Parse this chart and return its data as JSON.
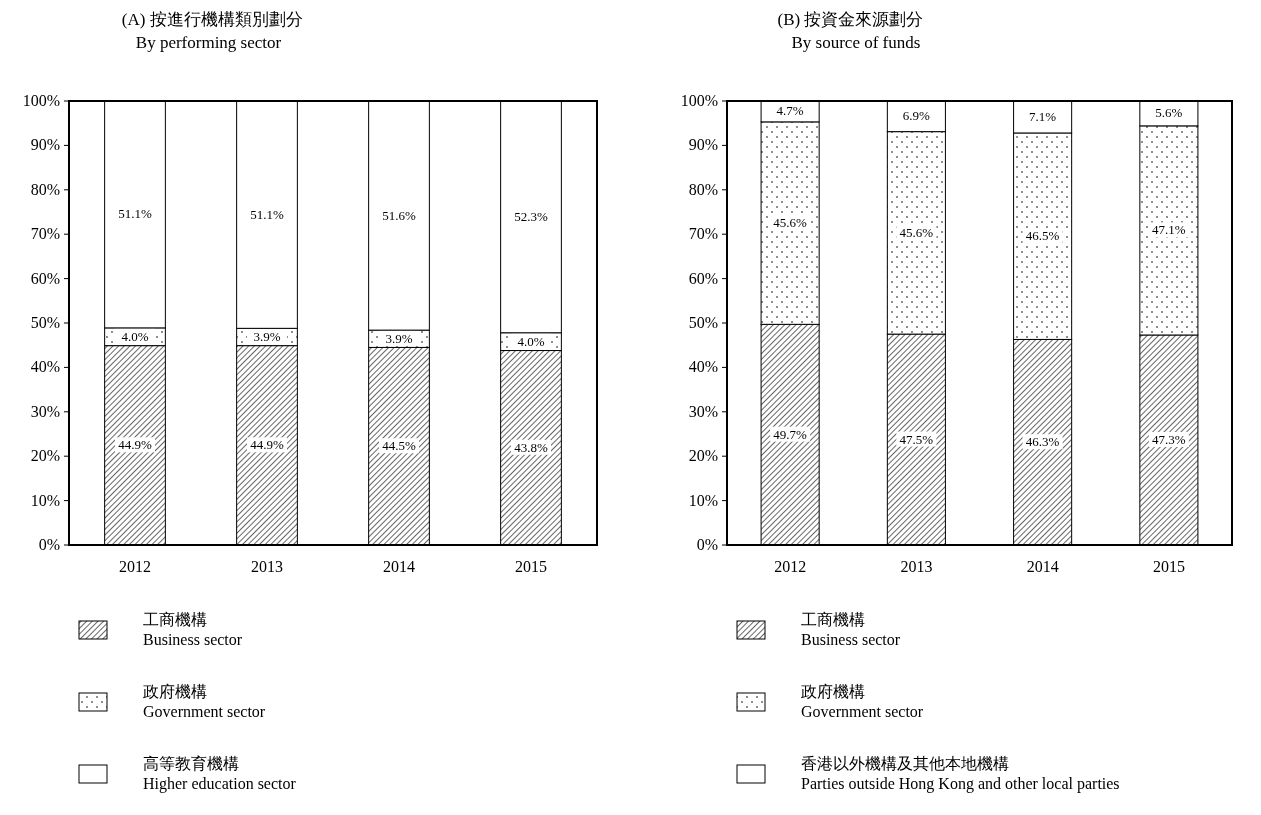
{
  "chart_data": [
    {
      "type": "bar",
      "title": "(A)  按進行機構類別劃分\nBy performing sector",
      "categories": [
        "2012",
        "2013",
        "2014",
        "2015"
      ],
      "stacked": true,
      "ylim": [
        0,
        100
      ],
      "yticks": [
        {
          "value": 0,
          "label": "0%"
        },
        {
          "value": 10,
          "label": "10%"
        },
        {
          "value": 20,
          "label": "20%"
        },
        {
          "value": 30,
          "label": "30%"
        },
        {
          "value": 40,
          "label": "40%"
        },
        {
          "value": 50,
          "label": "50%"
        },
        {
          "value": 60,
          "label": "60%"
        },
        {
          "value": 70,
          "label": "70%"
        },
        {
          "value": 80,
          "label": "80%"
        },
        {
          "value": 90,
          "label": "90%"
        },
        {
          "value": 100,
          "label": "100%"
        }
      ],
      "grid": false,
      "legend": "bottom",
      "series": [
        {
          "name": "工商機構\nBusiness sector",
          "color": "#000000",
          "values": [
            44.9,
            44.9,
            44.5,
            43.8
          ],
          "value_labels": [
            "44.9%",
            "44.9%",
            "44.5%",
            "43.8%"
          ]
        },
        {
          "name": "政府機構\nGovernment sector",
          "color": "#000000",
          "values": [
            4.0,
            3.9,
            3.9,
            4.0
          ],
          "value_labels": [
            "4.0%",
            "3.9%",
            "3.9%",
            "4.0%"
          ]
        },
        {
          "name": "高等教育機構\nHigher education sector",
          "color": "#ffffff",
          "values": [
            51.1,
            51.1,
            51.6,
            52.3
          ],
          "value_labels": [
            "51.1%",
            "51.1%",
            "51.6%",
            "52.3%"
          ]
        }
      ]
    },
    {
      "type": "bar",
      "title": "(B)  按資金來源劃分\nBy source of funds",
      "categories": [
        "2012",
        "2013",
        "2014",
        "2015"
      ],
      "stacked": true,
      "ylim": [
        0,
        100
      ],
      "yticks": [
        {
          "value": 0,
          "label": "0%"
        },
        {
          "value": 10,
          "label": "10%"
        },
        {
          "value": 20,
          "label": "20%"
        },
        {
          "value": 30,
          "label": "30%"
        },
        {
          "value": 40,
          "label": "40%"
        },
        {
          "value": 50,
          "label": "50%"
        },
        {
          "value": 60,
          "label": "60%"
        },
        {
          "value": 70,
          "label": "70%"
        },
        {
          "value": 80,
          "label": "80%"
        },
        {
          "value": 90,
          "label": "90%"
        },
        {
          "value": 100,
          "label": "100%"
        }
      ],
      "grid": false,
      "legend": "bottom",
      "series": [
        {
          "name": "工商機構\nBusiness sector",
          "color": "#000000",
          "values": [
            49.7,
            47.5,
            46.3,
            47.3
          ],
          "value_labels": [
            "49.7%",
            "47.5%",
            "46.3%",
            "47.3%"
          ]
        },
        {
          "name": "政府機構\nGovernment sector",
          "color": "#000000",
          "values": [
            45.6,
            45.6,
            46.5,
            47.1
          ],
          "value_labels": [
            "45.6%",
            "45.6%",
            "46.5%",
            "47.1%"
          ]
        },
        {
          "name": "香港以外機構及其他本地機構\nParties outside Hong Kong and other local parties",
          "color": "#ffffff",
          "values": [
            4.7,
            6.9,
            7.1,
            5.6
          ],
          "value_labels": [
            "4.7%",
            "6.9%",
            "7.1%",
            "5.6%"
          ]
        }
      ]
    }
  ]
}
